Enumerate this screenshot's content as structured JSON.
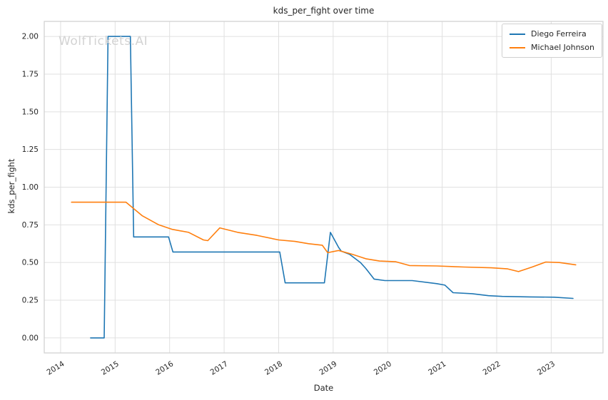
{
  "watermark": "WolfTickets.AI",
  "chart_data": {
    "type": "line",
    "title": "kds_per_fight over time",
    "xlabel": "Date",
    "ylabel": "kds_per_fight",
    "grid": true,
    "legend_position": "upper right",
    "xlim": [
      2013.7,
      2023.95
    ],
    "ylim": [
      -0.1,
      2.1
    ],
    "xticks": [
      2014,
      2015,
      2016,
      2017,
      2018,
      2019,
      2020,
      2021,
      2022,
      2023
    ],
    "yticks": [
      0.0,
      0.25,
      0.5,
      0.75,
      1.0,
      1.25,
      1.5,
      1.75,
      2.0
    ],
    "grid_color": "#e0e0e0",
    "spine_color": "#cfcfcf",
    "tick_label_color": "#262626",
    "series": [
      {
        "name": "Diego Ferreira",
        "color": "#1f77b4",
        "points": [
          [
            2014.55,
            0.0
          ],
          [
            2014.8,
            0.0
          ],
          [
            2014.87,
            2.0
          ],
          [
            2015.28,
            2.0
          ],
          [
            2015.34,
            0.67
          ],
          [
            2015.98,
            0.67
          ],
          [
            2016.06,
            0.57
          ],
          [
            2018.02,
            0.57
          ],
          [
            2018.12,
            0.365
          ],
          [
            2018.84,
            0.365
          ],
          [
            2018.95,
            0.7
          ],
          [
            2019.1,
            0.6
          ],
          [
            2019.15,
            0.575
          ],
          [
            2019.3,
            0.555
          ],
          [
            2019.5,
            0.5
          ],
          [
            2019.6,
            0.46
          ],
          [
            2019.75,
            0.39
          ],
          [
            2019.95,
            0.38
          ],
          [
            2020.45,
            0.38
          ],
          [
            2020.9,
            0.36
          ],
          [
            2021.05,
            0.35
          ],
          [
            2021.2,
            0.3
          ],
          [
            2021.55,
            0.293
          ],
          [
            2021.85,
            0.28
          ],
          [
            2022.1,
            0.275
          ],
          [
            2022.6,
            0.272
          ],
          [
            2023.05,
            0.27
          ],
          [
            2023.4,
            0.262
          ]
        ]
      },
      {
        "name": "Michael Johnson",
        "color": "#ff7f0e",
        "points": [
          [
            2014.2,
            0.9
          ],
          [
            2015.2,
            0.9
          ],
          [
            2015.5,
            0.81
          ],
          [
            2015.8,
            0.75
          ],
          [
            2016.05,
            0.72
          ],
          [
            2016.35,
            0.7
          ],
          [
            2016.62,
            0.65
          ],
          [
            2016.7,
            0.645
          ],
          [
            2016.92,
            0.73
          ],
          [
            2017.25,
            0.7
          ],
          [
            2017.6,
            0.68
          ],
          [
            2018.0,
            0.65
          ],
          [
            2018.3,
            0.64
          ],
          [
            2018.55,
            0.625
          ],
          [
            2018.8,
            0.615
          ],
          [
            2018.9,
            0.565
          ],
          [
            2019.1,
            0.58
          ],
          [
            2019.35,
            0.555
          ],
          [
            2019.6,
            0.525
          ],
          [
            2019.85,
            0.51
          ],
          [
            2020.15,
            0.505
          ],
          [
            2020.4,
            0.48
          ],
          [
            2020.9,
            0.477
          ],
          [
            2021.4,
            0.47
          ],
          [
            2021.9,
            0.465
          ],
          [
            2022.2,
            0.458
          ],
          [
            2022.4,
            0.44
          ],
          [
            2022.65,
            0.47
          ],
          [
            2022.9,
            0.503
          ],
          [
            2023.15,
            0.5
          ],
          [
            2023.45,
            0.485
          ]
        ]
      }
    ]
  }
}
